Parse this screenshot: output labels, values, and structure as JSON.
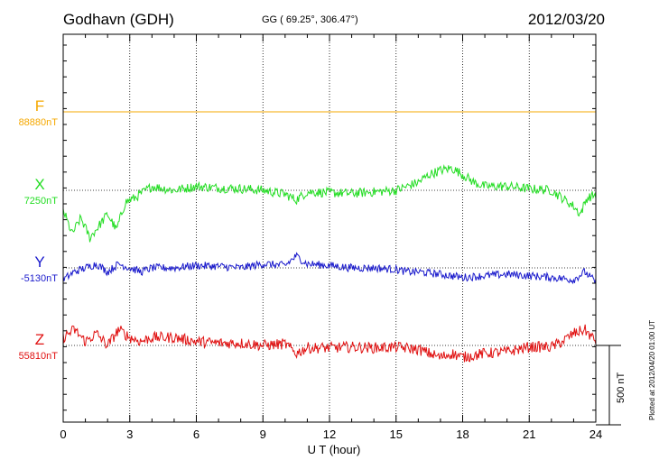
{
  "header": {
    "station": "Godhavn (GDH)",
    "coords": "GG ( 69.25°, 306.47°)",
    "date": "2012/03/20"
  },
  "footer": {
    "xaxis_label": "U T (hour)",
    "plotted_note": "Plotted at 2012/04/20 01:00 UT",
    "scale_label": "500 nT"
  },
  "chart_data": {
    "type": "line",
    "x_unit": "hour (UT)",
    "xlim": [
      0,
      24
    ],
    "x_ticks": [
      "0",
      "3",
      "6",
      "9",
      "12",
      "15",
      "18",
      "21",
      "24"
    ],
    "grid": true,
    "scale_bar_nT": 500,
    "series": [
      {
        "name": "F",
        "baseline_label": "88880nT",
        "baseline_nT": 88880,
        "color": "#f5a800",
        "points": [
          [
            0,
            0
          ],
          [
            24,
            0
          ]
        ],
        "noise": 0
      },
      {
        "name": "X",
        "baseline_label": "7250nT",
        "baseline_nT": 7250,
        "color": "#22dd22",
        "points": [
          [
            0,
            -25
          ],
          [
            0.4,
            -55
          ],
          [
            0.8,
            -35
          ],
          [
            1.2,
            -60
          ],
          [
            1.6,
            -45
          ],
          [
            2.0,
            -30
          ],
          [
            2.4,
            -50
          ],
          [
            2.8,
            -15
          ],
          [
            3.2,
            -10
          ],
          [
            4.0,
            5
          ],
          [
            5.0,
            0
          ],
          [
            6.0,
            5
          ],
          [
            7.0,
            3
          ],
          [
            8.0,
            2
          ],
          [
            9.0,
            0
          ],
          [
            10.0,
            -5
          ],
          [
            10.5,
            -12
          ],
          [
            11.0,
            -2
          ],
          [
            12.0,
            -3
          ],
          [
            13.0,
            -4
          ],
          [
            14.0,
            -2
          ],
          [
            15.0,
            0
          ],
          [
            15.5,
            5
          ],
          [
            16.0,
            10
          ],
          [
            16.5,
            20
          ],
          [
            17.0,
            25
          ],
          [
            17.5,
            28
          ],
          [
            18.0,
            20
          ],
          [
            18.5,
            10
          ],
          [
            19.0,
            5
          ],
          [
            20.0,
            5
          ],
          [
            21.0,
            2
          ],
          [
            22.0,
            0
          ],
          [
            22.5,
            -10
          ],
          [
            23.0,
            -20
          ],
          [
            23.3,
            -30
          ],
          [
            23.6,
            -10
          ],
          [
            24.0,
            -5
          ]
        ],
        "noise": 6
      },
      {
        "name": "Y",
        "baseline_label": "-5130nT",
        "baseline_nT": -5130,
        "color": "#1a1acc",
        "points": [
          [
            0,
            -15
          ],
          [
            0.5,
            -5
          ],
          [
            1.0,
            0
          ],
          [
            1.5,
            5
          ],
          [
            2.0,
            -5
          ],
          [
            2.5,
            5
          ],
          [
            3.0,
            0
          ],
          [
            3.5,
            -5
          ],
          [
            4.0,
            0
          ],
          [
            5.0,
            0
          ],
          [
            6.0,
            3
          ],
          [
            7.0,
            2
          ],
          [
            8.0,
            0
          ],
          [
            9.0,
            5
          ],
          [
            10.0,
            3
          ],
          [
            10.5,
            15
          ],
          [
            11.0,
            5
          ],
          [
            12.0,
            3
          ],
          [
            13.0,
            0
          ],
          [
            14.0,
            0
          ],
          [
            15.0,
            -2
          ],
          [
            15.5,
            -5
          ],
          [
            16.0,
            -5
          ],
          [
            17.0,
            -8
          ],
          [
            18.0,
            -12
          ],
          [
            19.0,
            -10
          ],
          [
            20.0,
            -8
          ],
          [
            21.0,
            -10
          ],
          [
            22.0,
            -12
          ],
          [
            23.0,
            -15
          ],
          [
            23.5,
            -5
          ],
          [
            24.0,
            -18
          ]
        ],
        "noise": 5
      },
      {
        "name": "Z",
        "baseline_label": "55810nT",
        "baseline_nT": 55810,
        "color": "#e01010",
        "points": [
          [
            0,
            10
          ],
          [
            0.5,
            20
          ],
          [
            1.0,
            5
          ],
          [
            1.5,
            15
          ],
          [
            2.0,
            0
          ],
          [
            2.5,
            20
          ],
          [
            3.0,
            10
          ],
          [
            3.5,
            5
          ],
          [
            4.0,
            10
          ],
          [
            5.0,
            10
          ],
          [
            6.0,
            5
          ],
          [
            7.0,
            3
          ],
          [
            8.0,
            3
          ],
          [
            9.0,
            0
          ],
          [
            10.0,
            2
          ],
          [
            10.5,
            -10
          ],
          [
            11.0,
            -3
          ],
          [
            12.0,
            -3
          ],
          [
            13.0,
            -2
          ],
          [
            14.0,
            -3
          ],
          [
            15.0,
            -2
          ],
          [
            16.0,
            -5
          ],
          [
            16.5,
            -10
          ],
          [
            17.0,
            -15
          ],
          [
            17.5,
            -10
          ],
          [
            18.0,
            -15
          ],
          [
            19.0,
            -10
          ],
          [
            20.0,
            -8
          ],
          [
            21.0,
            -2
          ],
          [
            22.0,
            -2
          ],
          [
            22.5,
            5
          ],
          [
            23.0,
            15
          ],
          [
            23.5,
            20
          ],
          [
            24.0,
            5
          ]
        ],
        "noise": 7
      }
    ]
  }
}
